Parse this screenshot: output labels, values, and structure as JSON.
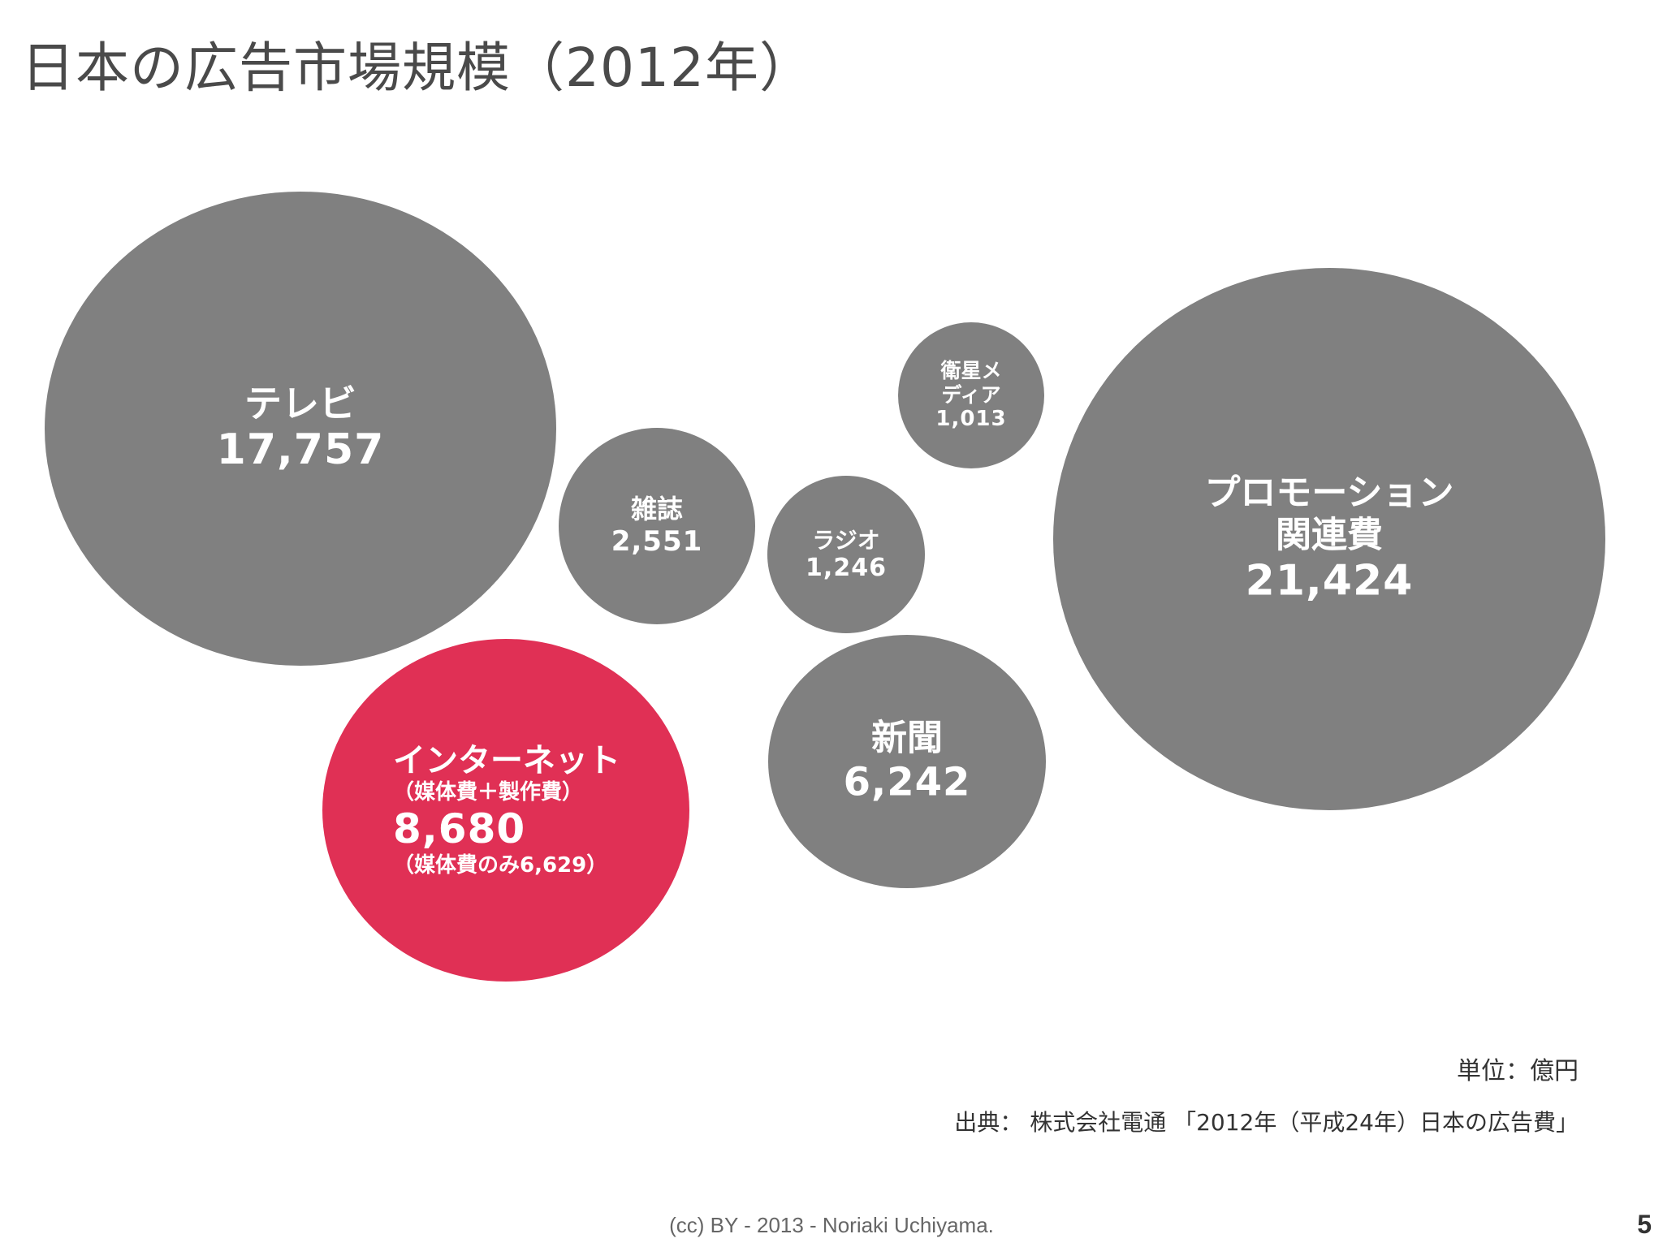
{
  "slide": {
    "title": "日本の広告市場規模（2012年）",
    "unit_label": "単位：億円",
    "source": "出典： 株式会社電通 「2012年（平成24年）日本の広告費」",
    "footer": "(cc) BY - 2013 - Noriaki Uchiyama.",
    "page_number": "5"
  },
  "chart_data": {
    "type": "bubble",
    "title": "日本の広告市場規模（2012年）",
    "unit": "億円",
    "colors": {
      "default": "#808080",
      "highlight": "#e03055"
    },
    "bubbles": [
      {
        "label": "テレビ",
        "value": 17757,
        "value_text": "17,757",
        "highlight": false
      },
      {
        "label": "雑誌",
        "value": 2551,
        "value_text": "2,551",
        "highlight": false
      },
      {
        "label": "ラジオ",
        "value": 1246,
        "value_text": "1,246",
        "highlight": false
      },
      {
        "label": "衛星メ\nディア",
        "value": 1013,
        "value_text": "1,013",
        "highlight": false
      },
      {
        "label": "プロモーション\n関連費",
        "value": 21424,
        "value_text": "21,424",
        "highlight": false
      },
      {
        "label": "インターネット",
        "sublabel": "（媒体費＋製作費）",
        "value": 8680,
        "value_text": "8,680",
        "note": "（媒体費のみ6,629）",
        "highlight": true
      },
      {
        "label": "新聞",
        "value": 6242,
        "value_text": "6,242",
        "highlight": false
      }
    ]
  }
}
